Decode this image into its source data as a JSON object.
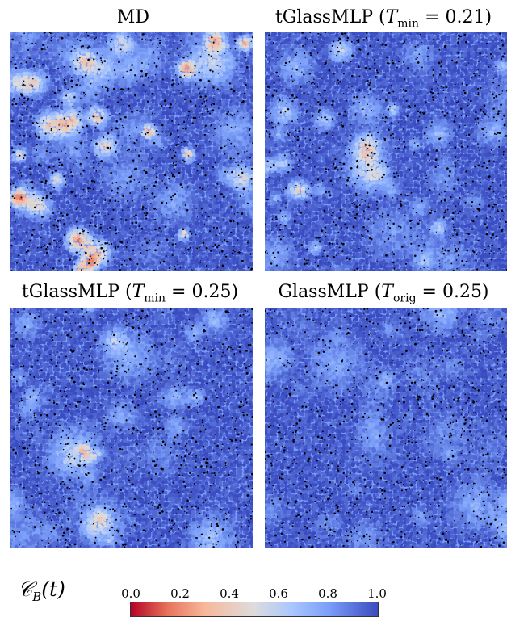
{
  "panels": [
    {
      "id": "md",
      "title_main": "MD",
      "title_var": "",
      "title_sub": "",
      "title_eq": "",
      "hot": 0.95,
      "seed": 11
    },
    {
      "id": "tglass-021",
      "title_main": "tGlassMLP (",
      "title_var": "T",
      "title_sub": "min",
      "title_eq": " = 0.21)",
      "hot": 0.55,
      "seed": 23
    },
    {
      "id": "tglass-025",
      "title_main": "tGlassMLP (",
      "title_var": "T",
      "title_sub": "min",
      "title_eq": " = 0.25)",
      "hot": 0.35,
      "seed": 37
    },
    {
      "id": "glass-025",
      "title_main": "GlassMLP (",
      "title_var": "T",
      "title_sub": "orig",
      "title_eq": " = 0.25)",
      "hot": 0.2,
      "seed": 51
    }
  ],
  "colorbar": {
    "symbol": "𝒞",
    "symbol_sub": "B",
    "symbol_arg": "(t)",
    "ticks": [
      "0.0",
      "0.2",
      "0.4",
      "0.6",
      "0.8",
      "1.0"
    ],
    "colormap": "coolwarm",
    "low_color": "#b40426",
    "mid_color": "#dddcdc",
    "high_color": "#3b4cc0"
  }
}
